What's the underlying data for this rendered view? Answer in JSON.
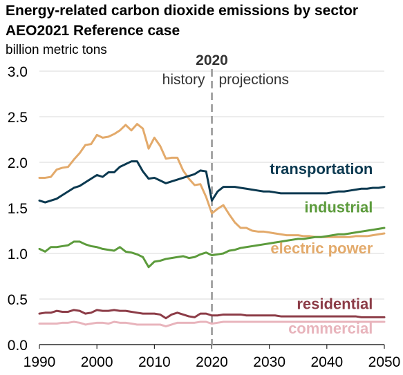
{
  "chart_data": {
    "type": "line",
    "title": "Energy-related carbon dioxide emissions by sector",
    "subtitle": "AEO2021 Reference case",
    "ylabel": "billion metric tons",
    "xlabel": "",
    "xlim": [
      1990,
      2050
    ],
    "ylim": [
      0,
      3.0
    ],
    "x_ticks": [
      "1990",
      "2000",
      "2010",
      "2020",
      "2030",
      "2040",
      "2050"
    ],
    "y_ticks": [
      "0.0",
      "0.5",
      "1.0",
      "1.5",
      "2.0",
      "2.5",
      "3.0"
    ],
    "grid": "horizontal",
    "legend": "inline labels at right",
    "divider": {
      "year": 2020,
      "label": "2020",
      "left_label": "history",
      "right_label": "projections"
    },
    "x": [
      1990,
      1991,
      1992,
      1993,
      1994,
      1995,
      1996,
      1997,
      1998,
      1999,
      2000,
      2001,
      2002,
      2003,
      2004,
      2005,
      2006,
      2007,
      2008,
      2009,
      2010,
      2011,
      2012,
      2013,
      2014,
      2015,
      2016,
      2017,
      2018,
      2019,
      2020,
      2021,
      2022,
      2023,
      2024,
      2025,
      2026,
      2027,
      2028,
      2029,
      2030,
      2031,
      2032,
      2033,
      2034,
      2035,
      2036,
      2037,
      2038,
      2039,
      2040,
      2041,
      2042,
      2043,
      2044,
      2045,
      2046,
      2047,
      2048,
      2049,
      2050
    ],
    "series": [
      {
        "name": "transportation",
        "color": "#0b3950",
        "values": [
          1.58,
          1.56,
          1.58,
          1.6,
          1.64,
          1.68,
          1.72,
          1.74,
          1.78,
          1.82,
          1.86,
          1.84,
          1.89,
          1.89,
          1.95,
          1.98,
          2.01,
          2.01,
          1.9,
          1.82,
          1.83,
          1.8,
          1.77,
          1.79,
          1.81,
          1.83,
          1.85,
          1.87,
          1.91,
          1.9,
          1.58,
          1.68,
          1.73,
          1.73,
          1.73,
          1.72,
          1.71,
          1.7,
          1.69,
          1.68,
          1.68,
          1.67,
          1.66,
          1.66,
          1.66,
          1.66,
          1.66,
          1.66,
          1.66,
          1.66,
          1.66,
          1.67,
          1.68,
          1.68,
          1.69,
          1.7,
          1.71,
          1.71,
          1.72,
          1.72,
          1.73
        ]
      },
      {
        "name": "electric power",
        "color": "#e3aa6b",
        "values": [
          1.83,
          1.83,
          1.84,
          1.92,
          1.94,
          1.95,
          2.03,
          2.1,
          2.19,
          2.2,
          2.3,
          2.27,
          2.28,
          2.31,
          2.35,
          2.41,
          2.35,
          2.42,
          2.37,
          2.15,
          2.27,
          2.18,
          2.04,
          2.05,
          2.05,
          1.91,
          1.82,
          1.75,
          1.76,
          1.62,
          1.44,
          1.49,
          1.53,
          1.43,
          1.34,
          1.28,
          1.28,
          1.25,
          1.24,
          1.24,
          1.23,
          1.22,
          1.21,
          1.2,
          1.2,
          1.2,
          1.19,
          1.19,
          1.18,
          1.18,
          1.18,
          1.18,
          1.18,
          1.18,
          1.18,
          1.19,
          1.19,
          1.19,
          1.2,
          1.21,
          1.22
        ]
      },
      {
        "name": "industrial",
        "color": "#5c9b3c",
        "values": [
          1.05,
          1.02,
          1.07,
          1.07,
          1.08,
          1.09,
          1.13,
          1.13,
          1.1,
          1.08,
          1.07,
          1.05,
          1.04,
          1.03,
          1.07,
          1.02,
          1.01,
          0.99,
          0.96,
          0.85,
          0.91,
          0.92,
          0.94,
          0.95,
          0.96,
          0.97,
          0.95,
          0.96,
          0.99,
          1.01,
          0.98,
          0.99,
          1.0,
          1.03,
          1.04,
          1.06,
          1.07,
          1.08,
          1.09,
          1.1,
          1.11,
          1.12,
          1.13,
          1.14,
          1.15,
          1.16,
          1.16,
          1.17,
          1.18,
          1.18,
          1.19,
          1.2,
          1.21,
          1.21,
          1.22,
          1.23,
          1.24,
          1.25,
          1.26,
          1.27,
          1.28
        ]
      },
      {
        "name": "residential",
        "color": "#8c3c47",
        "values": [
          0.34,
          0.35,
          0.35,
          0.37,
          0.36,
          0.36,
          0.38,
          0.37,
          0.34,
          0.35,
          0.38,
          0.37,
          0.37,
          0.38,
          0.37,
          0.37,
          0.36,
          0.35,
          0.34,
          0.34,
          0.34,
          0.33,
          0.29,
          0.33,
          0.35,
          0.33,
          0.31,
          0.3,
          0.34,
          0.34,
          0.32,
          0.32,
          0.33,
          0.33,
          0.33,
          0.33,
          0.32,
          0.32,
          0.32,
          0.32,
          0.32,
          0.32,
          0.31,
          0.31,
          0.31,
          0.31,
          0.31,
          0.31,
          0.31,
          0.31,
          0.31,
          0.31,
          0.31,
          0.31,
          0.31,
          0.31,
          0.3,
          0.3,
          0.3,
          0.3,
          0.3
        ]
      },
      {
        "name": "commercial",
        "color": "#e8b4bc",
        "values": [
          0.23,
          0.23,
          0.23,
          0.23,
          0.24,
          0.24,
          0.25,
          0.24,
          0.22,
          0.23,
          0.24,
          0.24,
          0.23,
          0.25,
          0.24,
          0.24,
          0.23,
          0.22,
          0.22,
          0.22,
          0.22,
          0.22,
          0.2,
          0.22,
          0.24,
          0.24,
          0.24,
          0.24,
          0.25,
          0.25,
          0.23,
          0.24,
          0.25,
          0.25,
          0.25,
          0.25,
          0.25,
          0.25,
          0.25,
          0.25,
          0.25,
          0.25,
          0.25,
          0.25,
          0.25,
          0.25,
          0.25,
          0.25,
          0.25,
          0.25,
          0.25,
          0.25,
          0.25,
          0.25,
          0.25,
          0.25,
          0.25,
          0.25,
          0.25,
          0.25,
          0.25
        ]
      }
    ],
    "series_labels": [
      {
        "text": "transportation",
        "color": "#0b3950",
        "anchor_year": 2048,
        "anchor_value": 1.87
      },
      {
        "text": "industrial",
        "color": "#5c9b3c",
        "anchor_year": 2048,
        "anchor_value": 1.45
      },
      {
        "text": "electric power",
        "color": "#e3aa6b",
        "anchor_year": 2048,
        "anchor_value": 1.0
      },
      {
        "text": "residential",
        "color": "#8c3c47",
        "anchor_year": 2048,
        "anchor_value": 0.39
      },
      {
        "text": "commercial",
        "color": "#e8b4bc",
        "anchor_year": 2048,
        "anchor_value": 0.12
      }
    ]
  }
}
